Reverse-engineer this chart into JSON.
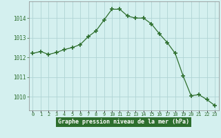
{
  "x": [
    0,
    1,
    2,
    3,
    4,
    5,
    6,
    7,
    8,
    9,
    10,
    11,
    12,
    13,
    14,
    15,
    16,
    17,
    18,
    19,
    20,
    21,
    22,
    23
  ],
  "y": [
    1012.2,
    1012.3,
    1012.15,
    1012.25,
    1012.4,
    1012.5,
    1012.65,
    1013.05,
    1013.35,
    1013.9,
    1014.45,
    1014.45,
    1014.1,
    1014.0,
    1014.0,
    1013.7,
    1013.2,
    1012.75,
    1012.2,
    1011.05,
    1010.05,
    1010.1,
    1009.85,
    1009.55
  ],
  "line_color": "#2d6e2d",
  "marker_color": "#2d6e2d",
  "bg_color": "#d4f0ef",
  "grid_color": "#b0d4d4",
  "label_bg_color": "#2d6e2d",
  "ylim_min": 1009.3,
  "ylim_max": 1014.85,
  "yticks": [
    1010,
    1011,
    1012,
    1013,
    1014
  ],
  "xlabel": "Graphe pression niveau de la mer (hPa)"
}
